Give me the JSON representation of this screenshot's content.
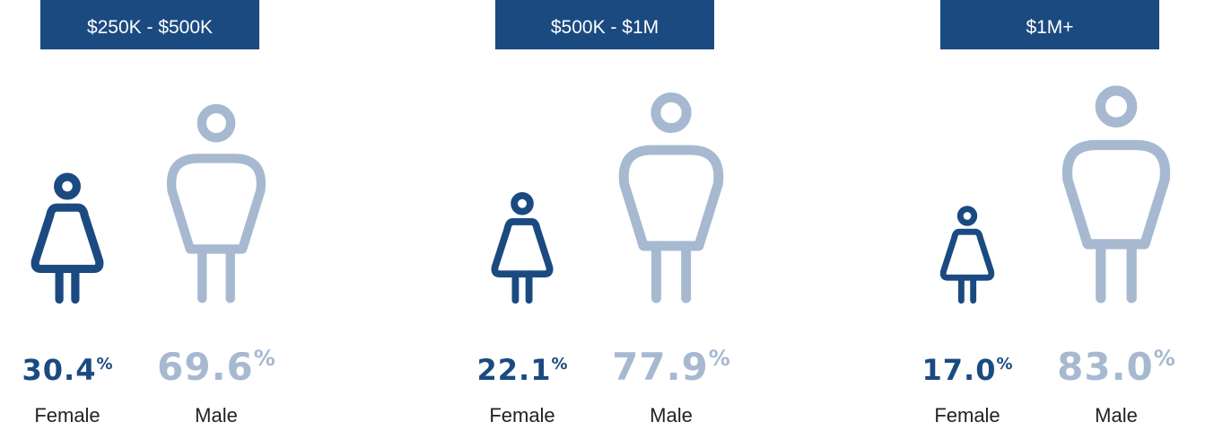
{
  "chart_data": {
    "type": "pictograph",
    "categories": [
      "$250K - $500K",
      "$500K - $1M",
      "$1M+"
    ],
    "unit": "%",
    "series": [
      {
        "name": "Female",
        "color": "#1b4a81",
        "values": [
          30.4,
          22.1,
          17.0
        ],
        "value_labels": [
          "30.4",
          "22.1",
          "17.0"
        ]
      },
      {
        "name": "Male",
        "color": "#a6b9d0",
        "values": [
          69.6,
          77.9,
          83.0
        ],
        "value_labels": [
          "69.6",
          "77.9",
          "83.0"
        ]
      }
    ]
  }
}
